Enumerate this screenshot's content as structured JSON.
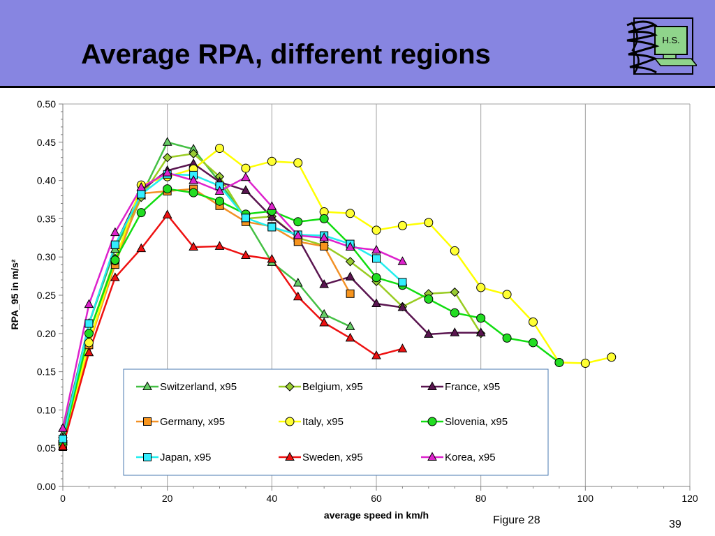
{
  "slide": {
    "title": "Average RPA, different regions",
    "figure_caption": "Figure 28",
    "page_number": "39",
    "logo_text": "H.S.",
    "colors": {
      "title_band": "#8785e1",
      "logo_screen": "#8fd48b"
    }
  },
  "chart_data": {
    "type": "line",
    "title": "",
    "xlabel": "average speed in km/h",
    "ylabel": "RPA_95 in m/s²",
    "xlim": [
      0,
      120
    ],
    "ylim": [
      0,
      0.5
    ],
    "x_ticks": [
      "0",
      "20",
      "40",
      "60",
      "80",
      "100",
      "120"
    ],
    "y_ticks": [
      "0.00",
      "0.05",
      "0.10",
      "0.15",
      "0.20",
      "0.25",
      "0.30",
      "0.35",
      "0.40",
      "0.45",
      "0.50"
    ],
    "grid": "vertical",
    "legend_position": "bottom-center, inside plot",
    "series": [
      {
        "name": "Switzerland, x95",
        "color": "#44c044",
        "marker": "triangle",
        "marker_fill": "#66cc66",
        "x": [
          0,
          5,
          10,
          15,
          20,
          25,
          30,
          35,
          40,
          45,
          50,
          55
        ],
        "y": [
          0.068,
          0.213,
          0.31,
          0.38,
          0.45,
          0.441,
          0.398,
          0.35,
          0.293,
          0.266,
          0.225,
          0.209
        ]
      },
      {
        "name": "Belgium, x95",
        "color": "#99cc22",
        "marker": "diamond",
        "marker_fill": "#99cc33",
        "x": [
          0,
          5,
          10,
          15,
          20,
          25,
          30,
          35,
          40,
          45,
          50,
          55,
          60,
          65,
          70,
          75,
          80
        ],
        "y": [
          0.058,
          0.2,
          0.298,
          0.378,
          0.43,
          0.435,
          0.405,
          0.35,
          0.353,
          0.325,
          0.315,
          0.294,
          0.268,
          0.235,
          0.252,
          0.254,
          0.2
        ]
      },
      {
        "name": "France, x95",
        "color": "#5a1550",
        "marker": "triangle",
        "marker_fill": "#5a1550",
        "x": [
          0,
          5,
          10,
          15,
          20,
          25,
          30,
          35,
          40,
          45,
          50,
          55,
          60,
          65,
          70,
          75,
          80
        ],
        "y": [
          0.064,
          0.213,
          0.315,
          0.387,
          0.413,
          0.422,
          0.398,
          0.387,
          0.352,
          0.325,
          0.264,
          0.274,
          0.239,
          0.234,
          0.199,
          0.201,
          0.201
        ]
      },
      {
        "name": "Germany, x95",
        "color": "#f29126",
        "marker": "square",
        "marker_fill": "#f7941d",
        "x": [
          0,
          5,
          10,
          15,
          20,
          25,
          30,
          35,
          40,
          45,
          50,
          55
        ],
        "y": [
          0.052,
          0.185,
          0.29,
          0.383,
          0.386,
          0.389,
          0.367,
          0.346,
          0.34,
          0.32,
          0.314,
          0.252
        ]
      },
      {
        "name": "Italy, x95",
        "color": "#ffff00",
        "marker": "circle",
        "marker_fill": "#ffff33",
        "x": [
          0,
          5,
          10,
          15,
          20,
          25,
          30,
          35,
          40,
          45,
          50,
          55,
          60,
          65,
          70,
          75,
          80,
          85,
          90,
          95,
          100,
          105
        ],
        "y": [
          0.055,
          0.188,
          0.295,
          0.394,
          0.405,
          0.415,
          0.442,
          0.416,
          0.425,
          0.423,
          0.359,
          0.357,
          0.335,
          0.341,
          0.345,
          0.308,
          0.26,
          0.251,
          0.215,
          0.162,
          0.161,
          0.169
        ]
      },
      {
        "name": "Slovenia, x95",
        "color": "#11dd11",
        "marker": "circle",
        "marker_fill": "#22dd22",
        "x": [
          0,
          5,
          10,
          15,
          20,
          25,
          30,
          35,
          40,
          45,
          50,
          55,
          60,
          65,
          70,
          75,
          80,
          85,
          90,
          95
        ],
        "y": [
          0.058,
          0.2,
          0.296,
          0.358,
          0.389,
          0.384,
          0.373,
          0.356,
          0.36,
          0.346,
          0.35,
          0.316,
          0.273,
          0.263,
          0.245,
          0.227,
          0.22,
          0.194,
          0.188,
          0.162
        ]
      },
      {
        "name": "Japan, x95",
        "color": "#22eeee",
        "marker": "square",
        "marker_fill": "#33eeff",
        "x": [
          0,
          5,
          10,
          15,
          20,
          25,
          30,
          35,
          40,
          45,
          50,
          55,
          60,
          65
        ],
        "y": [
          0.062,
          0.213,
          0.316,
          0.382,
          0.408,
          0.407,
          0.393,
          0.351,
          0.339,
          0.329,
          0.328,
          0.317,
          0.298,
          0.267
        ]
      },
      {
        "name": "Sweden, x95",
        "color": "#ee1111",
        "marker": "triangle",
        "marker_fill": "#ee1111",
        "x": [
          0,
          5,
          10,
          15,
          20,
          25,
          30,
          35,
          40,
          45,
          50,
          55,
          60,
          65
        ],
        "y": [
          0.052,
          0.175,
          0.273,
          0.311,
          0.355,
          0.313,
          0.314,
          0.302,
          0.297,
          0.248,
          0.214,
          0.194,
          0.171,
          0.18
        ]
      },
      {
        "name": "Korea, x95",
        "color": "#dd22cc",
        "marker": "triangle",
        "marker_fill": "#dd22cc",
        "x": [
          0,
          5,
          10,
          15,
          20,
          25,
          30,
          35,
          40,
          45,
          50,
          55,
          60,
          65
        ],
        "y": [
          0.076,
          0.238,
          0.332,
          0.391,
          0.41,
          0.4,
          0.386,
          0.404,
          0.366,
          0.328,
          0.325,
          0.313,
          0.309,
          0.294
        ]
      }
    ]
  }
}
